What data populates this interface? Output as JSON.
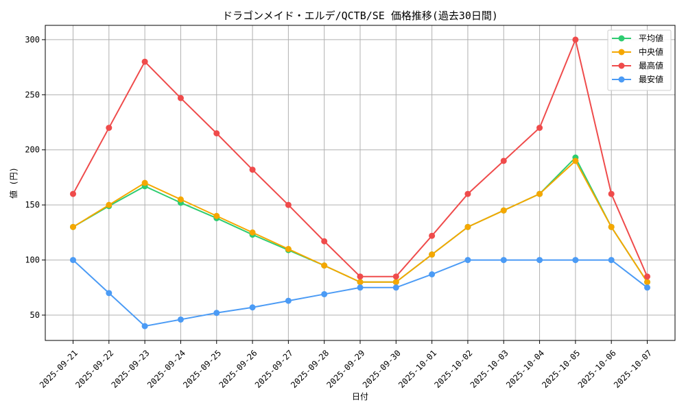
{
  "chart_data": {
    "type": "line",
    "title": "ドラゴンメイド・エルデ/QCTB/SE 価格推移(過去30日間)",
    "xlabel": "日付",
    "ylabel": "値 (円)",
    "categories": [
      "2025-09-21",
      "2025-09-22",
      "2025-09-23",
      "2025-09-24",
      "2025-09-25",
      "2025-09-26",
      "2025-09-27",
      "2025-09-28",
      "2025-09-29",
      "2025-09-30",
      "2025-10-01",
      "2025-10-02",
      "2025-10-03",
      "2025-10-04",
      "2025-10-05",
      "2025-10-06",
      "2025-10-07"
    ],
    "ylim": [
      27,
      313
    ],
    "yticks": [
      50,
      100,
      150,
      200,
      250,
      300
    ],
    "grid": true,
    "legend_position": "top-right",
    "series": [
      {
        "name": "平均値",
        "color": "#2ecc71",
        "values": [
          130,
          149,
          167,
          152,
          138,
          123,
          109,
          95,
          80,
          80,
          105,
          130,
          145,
          160,
          193,
          130,
          80
        ]
      },
      {
        "name": "中央値",
        "color": "#f5a700",
        "values": [
          130,
          150,
          170,
          155,
          140,
          125,
          110,
          95,
          80,
          80,
          105,
          130,
          145,
          160,
          190,
          130,
          80
        ]
      },
      {
        "name": "最高値",
        "color": "#ef4b4b",
        "values": [
          160,
          220,
          280,
          247,
          215,
          182,
          150,
          117,
          85,
          85,
          122,
          160,
          190,
          220,
          300,
          160,
          85
        ]
      },
      {
        "name": "最安値",
        "color": "#4b9bf5",
        "values": [
          100,
          70,
          40,
          46,
          52,
          57,
          63,
          69,
          75,
          75,
          87,
          100,
          100,
          100,
          100,
          100,
          75
        ]
      }
    ]
  }
}
